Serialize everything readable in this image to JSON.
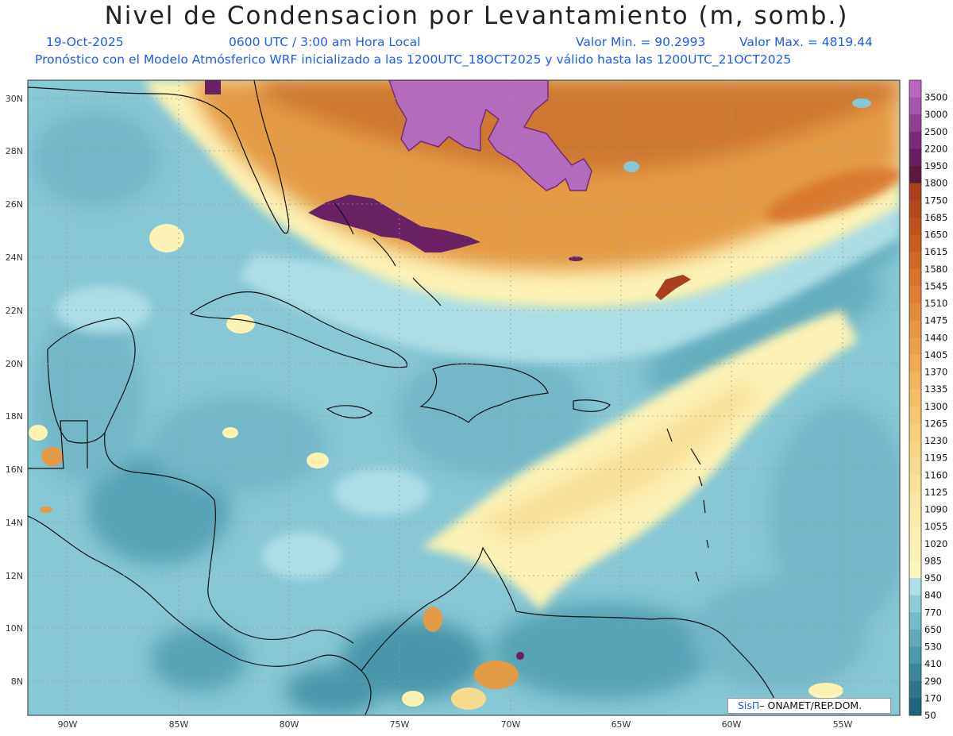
{
  "header": {
    "title": "Nivel de Condensacion por Levantamiento (m, somb.)",
    "date": "19-Oct-2025",
    "time": "0600 UTC / 3:00 am Hora Local",
    "min_label": "Valor Min. = 90.2993",
    "max_label": "Valor Max. = 4819.44",
    "subtitle": "Pronóstico con el Modelo Atmósferico WRF inicializado a las 1200UTC_18OCT2025 y válido hasta las  1200UTC_21OCT2025"
  },
  "axes": {
    "lat_labels": [
      "30N",
      "28N",
      "26N",
      "24N",
      "22N",
      "20N",
      "18N",
      "16N",
      "14N",
      "12N",
      "10N",
      "8N"
    ],
    "lon_labels": [
      "90W",
      "85W",
      "80W",
      "75W",
      "70W",
      "65W",
      "60W",
      "55W"
    ]
  },
  "colorbar": {
    "labels": [
      "3500",
      "3000",
      "2500",
      "2200",
      "1950",
      "1800",
      "1750",
      "1685",
      "1650",
      "1615",
      "1580",
      "1545",
      "1510",
      "1475",
      "1440",
      "1405",
      "1370",
      "1335",
      "1300",
      "1265",
      "1230",
      "1195",
      "1160",
      "1125",
      "1090",
      "1055",
      "1020",
      "985",
      "950",
      "840",
      "770",
      "650",
      "530",
      "410",
      "290",
      "170",
      "50"
    ],
    "colors": [
      "#b968bd",
      "#a456a8",
      "#8f3f90",
      "#7a2a78",
      "#652062",
      "#5a1a3e",
      "#a8401e",
      "#b4481c",
      "#bf521c",
      "#c95d1f",
      "#d16826",
      "#d8742c",
      "#de8032",
      "#e38c38",
      "#e7973f",
      "#eba247",
      "#eeac50",
      "#f0b65a",
      "#f2bf65",
      "#f4c870",
      "#f5cf7a",
      "#f6d685",
      "#f7dc8f",
      "#f8e299",
      "#f9e7a2",
      "#faebaa",
      "#fbefb1",
      "#fbf2b8",
      "#fcf5c0",
      "#aee0e6",
      "#8fcdd6",
      "#76bcc8",
      "#5fabba",
      "#4b99ab",
      "#3a879b",
      "#2d768a",
      "#226479"
    ]
  },
  "credit": {
    "brand": "SisΠ",
    "text": "– ONAMET/REP.DOM."
  },
  "map_colors": {
    "base": "#86c8d4",
    "dark_teal": "#4d9dae",
    "light_cyan": "#aee0e6",
    "yellow": "#fbf2b4",
    "orange": "#e59a45",
    "dark_orange": "#c9702c",
    "purple": "#b46bbd",
    "dark_purple": "#6a2163",
    "coast": "#111111",
    "grid": "#9a9a9a"
  }
}
